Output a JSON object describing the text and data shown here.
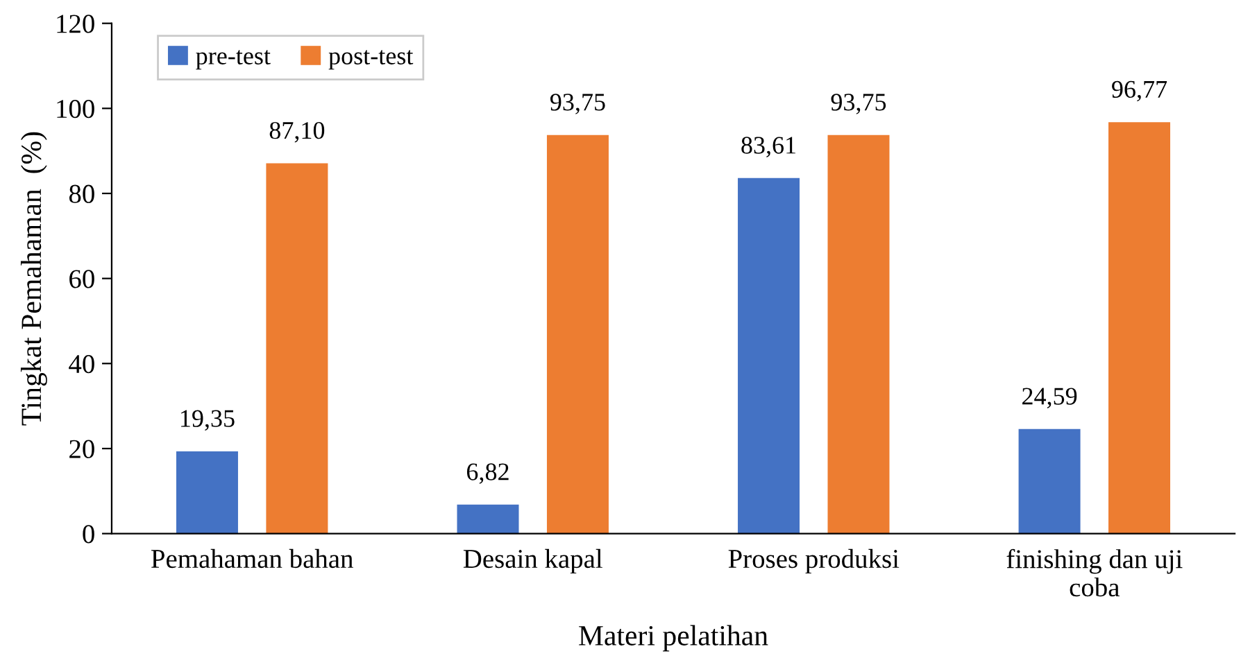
{
  "chart_data": {
    "type": "bar",
    "xlabel": "Materi pelatihan",
    "ylabel": "Tingkat Pemahaman  (%)",
    "categories": [
      "Pemahaman bahan",
      "Desain kapal",
      "Proses produksi",
      "finishing dan uji\ncoba"
    ],
    "series": [
      {
        "name": "pre-test",
        "color": "#4472c4",
        "values": [
          19.35,
          6.82,
          83.61,
          24.59
        ],
        "value_labels": [
          "19,35",
          "6,82",
          "83,61",
          "24,59"
        ]
      },
      {
        "name": "post-test",
        "color": "#ed7d31",
        "values": [
          87.1,
          93.75,
          93.75,
          96.77
        ],
        "value_labels": [
          "87,10",
          "93,75",
          "93,75",
          "96,77"
        ]
      }
    ],
    "ylim": [
      0,
      120
    ],
    "yticks": [
      0,
      20,
      40,
      60,
      80,
      100,
      120
    ],
    "grid": false,
    "legend": "top left"
  }
}
